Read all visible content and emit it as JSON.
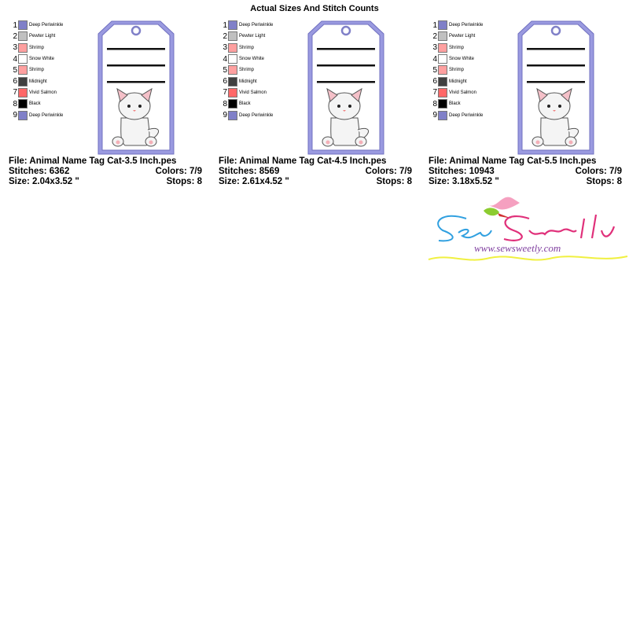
{
  "title": "Actual Sizes And Stitch Counts",
  "colors": [
    {
      "num": "1",
      "name": "Deep Periwinkle",
      "hex": "#8080c8"
    },
    {
      "num": "2",
      "name": "Pewter Light",
      "hex": "#c0c0c0"
    },
    {
      "num": "3",
      "name": "Shrimp",
      "hex": "#ffa0a0"
    },
    {
      "num": "4",
      "name": "Snow White",
      "hex": "#ffffff"
    },
    {
      "num": "5",
      "name": "Shrimp",
      "hex": "#ffa0a0"
    },
    {
      "num": "6",
      "name": "Midnight",
      "hex": "#404040"
    },
    {
      "num": "7",
      "name": "Vivid Salmon",
      "hex": "#ff6868"
    },
    {
      "num": "8",
      "name": "Black",
      "hex": "#000000"
    },
    {
      "num": "9",
      "name": "Deep Periwinkle",
      "hex": "#8080c8"
    }
  ],
  "designs": [
    {
      "file": "File: Animal Name Tag Cat-3.5 Inch.pes",
      "stitches": "Stitches: 6362",
      "colors": "Colors: 7/9",
      "size": "Size: 2.04x3.52 \"",
      "stops": "Stops: 8"
    },
    {
      "file": "File: Animal Name Tag Cat-4.5 Inch.pes",
      "stitches": "Stitches: 8569",
      "colors": "Colors: 7/9",
      "size": "Size: 2.61x4.52 \"",
      "stops": "Stops: 8"
    },
    {
      "file": "File: Animal Name Tag Cat-5.5 Inch.pes",
      "stitches": "Stitches: 10943",
      "colors": "Colors: 7/9",
      "size": "Size: 3.18x5.52 \"",
      "stops": "Stops: 8"
    }
  ],
  "logo": {
    "brand": "Sew Sweetly",
    "url": "www.sewsweetly.com"
  }
}
